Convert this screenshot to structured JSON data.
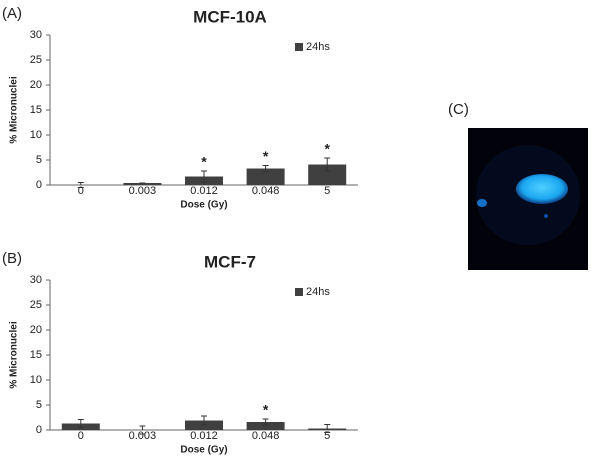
{
  "chart_data": [
    {
      "type": "bar",
      "panel": "(A)",
      "title": "MCF-10A",
      "xlabel": "Dose (Gy)",
      "ylabel": "% Micronuclei",
      "categories": [
        "0",
        "0.003",
        "0.012",
        "0.048",
        "5"
      ],
      "series": [
        {
          "name": "24hs",
          "color": "#404040",
          "values": [
            0,
            0.4,
            1.7,
            3.3,
            4.1
          ],
          "errors": [
            0.5,
            0,
            1.1,
            0.6,
            1.3
          ]
        }
      ],
      "significance": [
        null,
        null,
        "*",
        "*",
        "*"
      ],
      "ylim": [
        0,
        30
      ],
      "yticks": [
        0,
        5,
        10,
        15,
        20,
        25,
        30
      ],
      "legend": "upper right"
    },
    {
      "type": "bar",
      "panel": "(B)",
      "title": "MCF-7",
      "xlabel": "Dose (Gy)",
      "ylabel": "% Micronuclei",
      "categories": [
        "0",
        "0.003",
        "0.012",
        "0.048",
        "5"
      ],
      "series": [
        {
          "name": "24hs",
          "color": "#404040",
          "values": [
            1.3,
            0,
            1.9,
            1.6,
            0.3
          ],
          "errors": [
            0.8,
            0.8,
            0.9,
            0.6,
            0.8
          ]
        }
      ],
      "significance": [
        null,
        null,
        null,
        "*",
        null
      ],
      "ylim": [
        0,
        30
      ],
      "yticks": [
        0,
        5,
        10,
        15,
        20,
        25,
        30
      ],
      "legend": "upper right"
    }
  ],
  "image_panel": {
    "label": "(C)"
  }
}
